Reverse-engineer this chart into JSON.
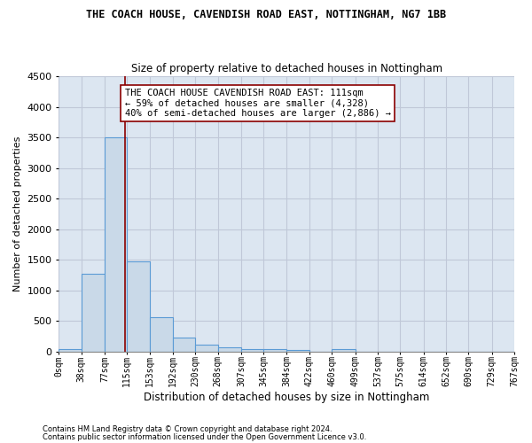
{
  "title": "THE COACH HOUSE, CAVENDISH ROAD EAST, NOTTINGHAM, NG7 1BB",
  "subtitle": "Size of property relative to detached houses in Nottingham",
  "xlabel": "Distribution of detached houses by size in Nottingham",
  "ylabel": "Number of detached properties",
  "bar_values": [
    40,
    1270,
    3500,
    1470,
    570,
    235,
    110,
    75,
    50,
    45,
    30,
    0,
    40,
    0,
    0,
    0,
    0,
    0,
    0,
    0
  ],
  "bin_edges": [
    0,
    38,
    77,
    115,
    153,
    192,
    230,
    268,
    307,
    345,
    384,
    422,
    460,
    499,
    537,
    575,
    614,
    652,
    690,
    729,
    767
  ],
  "bar_color": "#c9d9e8",
  "bar_edge_color": "#5b9bd5",
  "grid_color": "#c0c8d8",
  "background_color": "#dce6f1",
  "annotation_text": "THE COACH HOUSE CAVENDISH ROAD EAST: 111sqm\n← 59% of detached houses are smaller (4,328)\n40% of semi-detached houses are larger (2,886) →",
  "vline_x": 111,
  "vline_color": "#8b0000",
  "ylim": [
    0,
    4500
  ],
  "yticks": [
    0,
    500,
    1000,
    1500,
    2000,
    2500,
    3000,
    3500,
    4000,
    4500
  ],
  "footnote1": "Contains HM Land Registry data © Crown copyright and database right 2024.",
  "footnote2": "Contains public sector information licensed under the Open Government Licence v3.0."
}
